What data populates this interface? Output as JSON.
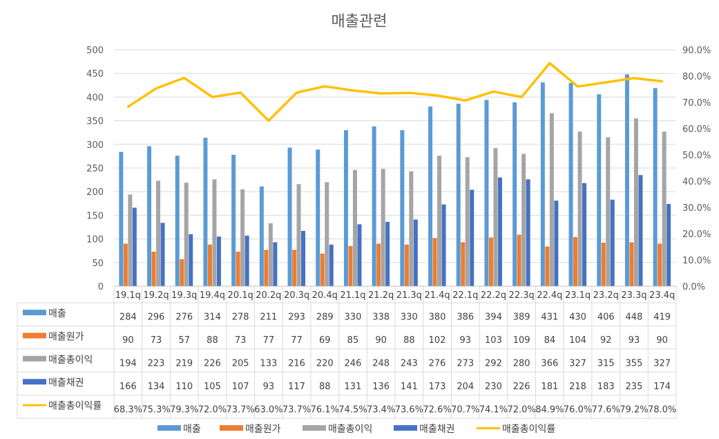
{
  "chart_data": {
    "type": "bar",
    "title": "매출관련",
    "categories": [
      "19.1q",
      "19.2q",
      "19.3q",
      "19.4q",
      "20.1q",
      "20.2q",
      "20.3q",
      "20.4q",
      "21.1q",
      "21.2q",
      "21.3q",
      "21.4q",
      "22.1q",
      "22.2q",
      "22.3q",
      "22.4q",
      "23.1q",
      "23.2q",
      "23.3q",
      "23.4q"
    ],
    "series": [
      {
        "name": "매출",
        "type": "bar",
        "axis": "left",
        "color": "#5B9BD5",
        "values": [
          284,
          296,
          276,
          314,
          278,
          211,
          293,
          289,
          330,
          338,
          330,
          380,
          386,
          394,
          389,
          431,
          430,
          406,
          448,
          419
        ]
      },
      {
        "name": "매출원가",
        "type": "bar",
        "axis": "left",
        "color": "#ED7D31",
        "values": [
          90,
          73,
          57,
          88,
          73,
          77,
          77,
          69,
          85,
          90,
          88,
          102,
          93,
          103,
          109,
          84,
          104,
          92,
          93,
          90
        ]
      },
      {
        "name": "매출총이익",
        "type": "bar",
        "axis": "left",
        "color": "#A5A5A5",
        "values": [
          194,
          223,
          219,
          226,
          205,
          133,
          216,
          220,
          246,
          248,
          243,
          276,
          273,
          292,
          280,
          366,
          327,
          315,
          355,
          327
        ]
      },
      {
        "name": "매출채권",
        "type": "bar",
        "axis": "left",
        "color": "#4472C4",
        "values": [
          166,
          134,
          110,
          105,
          107,
          93,
          117,
          88,
          131,
          136,
          141,
          173,
          204,
          230,
          226,
          181,
          218,
          183,
          235,
          174
        ]
      },
      {
        "name": "매출총이익률",
        "type": "line",
        "axis": "right",
        "color": "#FFC000",
        "values": [
          68.3,
          75.3,
          79.3,
          72.0,
          73.7,
          63.0,
          73.7,
          76.1,
          74.5,
          73.4,
          73.6,
          72.6,
          70.7,
          74.1,
          72.0,
          84.9,
          76.0,
          77.6,
          79.2,
          78.0
        ],
        "labels": [
          "68.3%",
          "75.3%",
          "79.3%",
          "72.0%",
          "73.7%",
          "63.0%",
          "73.7%",
          "76.1%",
          "74.5%",
          "73.4%",
          "73.6%",
          "72.6%",
          "70.7%",
          "74.1%",
          "72.0%",
          "84.9%",
          "76.0%",
          "77.6%",
          "79.2%",
          "78.0%"
        ]
      }
    ],
    "y_left": {
      "min": 0,
      "max": 500,
      "ticks": [
        "0",
        "50",
        "100",
        "150",
        "200",
        "250",
        "300",
        "350",
        "400",
        "450",
        "500"
      ]
    },
    "y_right": {
      "min": 0,
      "max": 90,
      "ticks": [
        "0.0%",
        "10.0%",
        "20.0%",
        "30.0%",
        "40.0%",
        "50.0%",
        "60.0%",
        "70.0%",
        "80.0%",
        "90.0%"
      ]
    },
    "grid": true,
    "data_table": true,
    "legend": "bottom"
  }
}
